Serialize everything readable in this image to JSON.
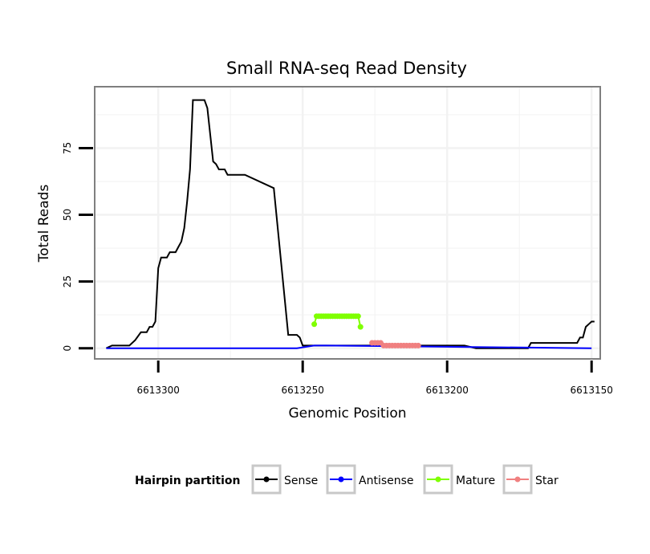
{
  "chart_data": {
    "type": "line",
    "title": "Small RNA-seq Read Density",
    "xlabel": "Genomic Position",
    "ylabel": "Total Reads",
    "x_reversed": true,
    "xlim": [
      6613147,
      6613322
    ],
    "ylim": [
      -4,
      98
    ],
    "x_ticks": [
      6613300,
      6613250,
      6613200,
      6613150
    ],
    "x_tick_labels": [
      "6613300",
      "6613250",
      "6613200",
      "6613150"
    ],
    "y_ticks": [
      0,
      25,
      50,
      75
    ],
    "y_tick_labels": [
      "0",
      "25",
      "50",
      "75"
    ],
    "grid": true,
    "legend": {
      "title": "Hairpin partition",
      "position": "bottom",
      "entries": [
        "Sense",
        "Antisense",
        "Mature",
        "Star"
      ]
    },
    "colors": {
      "Sense": "#000000",
      "Antisense": "#0000ff",
      "Mature": "#7fff00",
      "Star": "#f08080",
      "panel_border": "#7f7f7f",
      "grid": "#f2f2f2"
    },
    "series": [
      {
        "name": "Sense",
        "x": [
          6613318,
          6613316,
          6613312,
          6613310,
          6613308,
          6613306,
          6613304,
          6613303,
          6613302,
          6613301,
          6613300,
          6613299,
          6613298,
          6613297,
          6613296,
          6613295,
          6613294,
          6613293,
          6613292,
          6613291,
          6613290,
          6613289,
          6613288,
          6613287,
          6613286,
          6613285,
          6613284,
          6613283,
          6613282,
          6613281,
          6613280,
          6613279,
          6613278,
          6613277,
          6613276,
          6613270,
          6613260,
          6613255,
          6613252,
          6613251,
          6613250,
          6613245,
          6613240,
          6613236,
          6613235,
          6613230,
          6613226,
          6613225,
          6613220,
          6613215,
          6613210,
          6613200,
          6613195,
          6613194,
          6613190,
          6613185,
          6613180,
          6613178,
          6613177,
          6613176,
          6613175,
          6613174,
          6613173,
          6613172,
          6613171,
          6613170,
          6613168,
          6613166,
          6613164,
          6613162,
          6613160,
          6613158,
          6613156,
          6613155,
          6613154,
          6613153,
          6613152,
          6613151,
          6613150,
          6613149
        ],
        "y": [
          0,
          1,
          1,
          1,
          3,
          6,
          6,
          8,
          8,
          10,
          30,
          34,
          34,
          34,
          36,
          36,
          36,
          38,
          40,
          45,
          55,
          67,
          93,
          93,
          93,
          93,
          93,
          90,
          80,
          70,
          69,
          67,
          67,
          67,
          65,
          65,
          60,
          5,
          5,
          4,
          1,
          1,
          1,
          1,
          1,
          1,
          1,
          1,
          1,
          1,
          1,
          1,
          1,
          1,
          0,
          0,
          0,
          0,
          0,
          0,
          0,
          0,
          0,
          0,
          2,
          2,
          2,
          2,
          2,
          2,
          2,
          2,
          2,
          2,
          4,
          4,
          8,
          9,
          10,
          10
        ]
      },
      {
        "name": "Antisense",
        "x": [
          6613318,
          6613252,
          6613246,
          6613242,
          6613150
        ],
        "y": [
          0,
          0,
          1,
          1,
          0
        ]
      },
      {
        "name": "Mature",
        "x": [
          6613246,
          6613245.2,
          6613244.4,
          6613243.6,
          6613242.8,
          6613242,
          6613241.2,
          6613240.4,
          6613239.6,
          6613238.8,
          6613238,
          6613237.2,
          6613236.4,
          6613235.6,
          6613234.8,
          6613234,
          6613233.2,
          6613232.4,
          6613231.6,
          6613230.8,
          6613230
        ],
        "y": [
          9,
          12,
          12,
          12,
          12,
          12,
          12,
          12,
          12,
          12,
          12,
          12,
          12,
          12,
          12,
          12,
          12,
          12,
          12,
          12,
          8
        ]
      },
      {
        "name": "Star",
        "x": [
          6613226,
          6613225,
          6613224,
          6613223,
          6613222,
          6613221,
          6613220,
          6613219,
          6613218,
          6613217,
          6613216,
          6613215,
          6613214,
          6613213,
          6613212,
          6613211,
          6613210
        ],
        "y": [
          2,
          2,
          2,
          2,
          1,
          1,
          1,
          1,
          1,
          1,
          1,
          1,
          1,
          1,
          1,
          1,
          1
        ]
      }
    ]
  }
}
